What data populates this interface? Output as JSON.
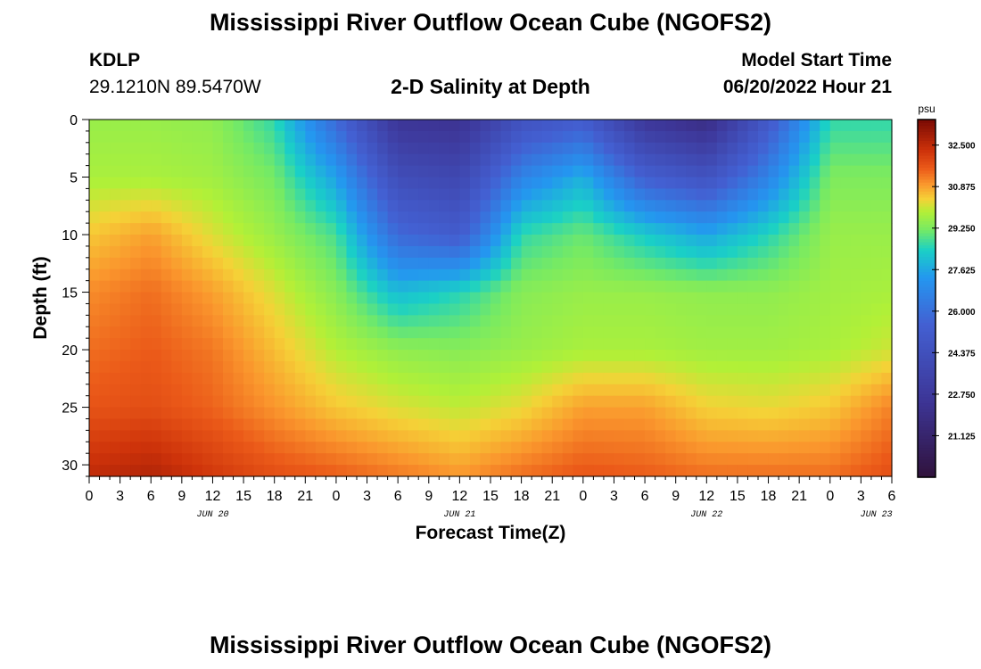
{
  "page": {
    "title": "Mississippi River Outflow Ocean Cube (NGOFS2)",
    "station_name": "KDLP",
    "station_coords": "29.1210N  89.5470W",
    "subtitle": "2-D Salinity at Depth",
    "start_label": "Model Start Time",
    "start_value": "06/20/2022 Hour 21",
    "footer_title": "Mississippi River Outflow Ocean Cube (NGOFS2)"
  },
  "chart_data": {
    "type": "heatmap",
    "title": "2-D Salinity at Depth",
    "xlabel": "Forecast Time(Z)",
    "ylabel": "Depth (ft)",
    "xlim": [
      0,
      78
    ],
    "ylim": [
      31,
      0
    ],
    "x_ticks": [
      0,
      3,
      6,
      9,
      12,
      15,
      18,
      21,
      24,
      27,
      30,
      33,
      36,
      39,
      42,
      45,
      48,
      51,
      54,
      57,
      60,
      63,
      66,
      69,
      72,
      75,
      78
    ],
    "x_tick_labels": [
      "0",
      "3",
      "6",
      "9",
      "12",
      "15",
      "18",
      "21",
      "0",
      "3",
      "6",
      "9",
      "12",
      "15",
      "18",
      "21",
      "0",
      "3",
      "6",
      "9",
      "12",
      "15",
      "18",
      "21",
      "0",
      "3",
      "6"
    ],
    "date_labels": [
      {
        "x": 12,
        "text": "JUN 20"
      },
      {
        "x": 36,
        "text": "JUN 21"
      },
      {
        "x": 60,
        "text": "JUN 22"
      },
      {
        "x": 76.5,
        "text": "JUN 23"
      }
    ],
    "y_ticks": [
      0,
      5,
      10,
      15,
      20,
      25,
      30
    ],
    "y_tick_labels": [
      "0",
      "5",
      "10",
      "15",
      "20",
      "25",
      "30"
    ],
    "colorbar": {
      "unit": "psu",
      "min": 19.5,
      "max": 33.5,
      "ticks": [
        32.5,
        30.875,
        29.25,
        27.625,
        26.0,
        24.375,
        22.75,
        21.125
      ],
      "tick_labels": [
        "32.500",
        "30.875",
        "29.250",
        "27.625",
        "26.000",
        "24.375",
        "22.750",
        "21.125"
      ]
    },
    "x": [
      0,
      6,
      12,
      18,
      24,
      30,
      36,
      42,
      48,
      54,
      60,
      66,
      72,
      78
    ],
    "depths": [
      0,
      5,
      10,
      15,
      20,
      25,
      31
    ],
    "values": [
      [
        29.6,
        29.6,
        29.5,
        28.6,
        25.8,
        22.5,
        22.3,
        24.5,
        25.2,
        22.6,
        21.8,
        25.0,
        28.6,
        28.6
      ],
      [
        29.8,
        29.8,
        29.7,
        29.2,
        27.5,
        24.2,
        23.8,
        26.7,
        27.8,
        25.4,
        24.6,
        26.7,
        29.3,
        29.3
      ],
      [
        30.5,
        30.9,
        30.2,
        29.6,
        28.8,
        25.8,
        25.2,
        28.6,
        29.1,
        28.3,
        27.6,
        28.5,
        29.6,
        29.6
      ],
      [
        31.1,
        31.4,
        30.9,
        30.2,
        29.4,
        28.0,
        28.5,
        29.4,
        29.6,
        29.6,
        29.5,
        29.5,
        29.7,
        29.8
      ],
      [
        31.4,
        31.6,
        31.3,
        30.6,
        29.9,
        29.5,
        29.4,
        29.6,
        29.8,
        29.8,
        29.7,
        29.7,
        29.8,
        30.1
      ],
      [
        31.7,
        31.8,
        31.5,
        31.0,
        30.5,
        30.2,
        30.0,
        30.3,
        30.9,
        30.9,
        30.4,
        30.3,
        30.5,
        31.2
      ],
      [
        32.5,
        32.7,
        32.2,
        31.8,
        31.6,
        31.3,
        31.0,
        31.4,
        31.7,
        31.6,
        31.4,
        31.4,
        31.4,
        31.8
      ]
    ]
  }
}
